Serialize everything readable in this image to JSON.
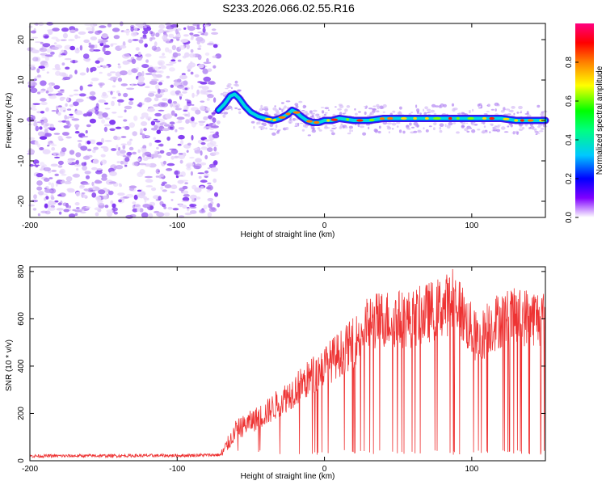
{
  "title": "S233.2026.066.02.55.R16",
  "chart_data": [
    {
      "type": "heatmap",
      "xlabel": "Height of straight line (km)",
      "ylabel": "Frequency (Hz)",
      "xlim": [
        -200,
        150
      ],
      "ylim": [
        -24,
        24
      ],
      "xticks": [
        -200,
        -100,
        0,
        100
      ],
      "yticks": [
        -20,
        -10,
        0,
        10,
        20
      ],
      "noise_region_x": [
        -200,
        -72
      ],
      "colorbar": {
        "label": "Normalized spectral amplitude",
        "range": [
          0,
          1
        ],
        "ticks": [
          0.0,
          0.2,
          0.4,
          0.6,
          0.8
        ],
        "tick_labels": [
          "0.0",
          "0.2",
          "0.4",
          "0.6",
          "0.8"
        ]
      },
      "ridge_trace": {
        "x": [
          -72,
          -68,
          -64,
          -61,
          -58,
          -54,
          -50,
          -45,
          -40,
          -35,
          -30,
          -25,
          -22,
          -19,
          -16,
          -12,
          -8,
          -4,
          0,
          5,
          10,
          20,
          30,
          40,
          50,
          60,
          70,
          80,
          90,
          100,
          110,
          120,
          130,
          140,
          150
        ],
        "y": [
          2.5,
          4,
          6,
          6.5,
          5.5,
          3.5,
          2,
          1,
          0.5,
          0,
          0.5,
          1.5,
          2.5,
          2,
          1,
          0,
          -0.5,
          -0.5,
          0,
          0,
          0.5,
          0,
          0,
          0.5,
          0.5,
          0.5,
          0.5,
          0.5,
          0.5,
          0.5,
          0.5,
          0.5,
          0,
          0,
          0
        ]
      }
    },
    {
      "type": "line",
      "xlabel": "Height of straight line (km)",
      "ylabel": "SNR (10 * v/v)",
      "xlim": [
        -200,
        150
      ],
      "ylim": [
        0,
        820
      ],
      "xticks": [
        -200,
        -100,
        0,
        100
      ],
      "yticks": [
        0,
        200,
        400,
        600,
        800
      ],
      "color": "#ee3333",
      "envelope": {
        "x": [
          -200,
          -100,
          -70,
          -60,
          -40,
          -20,
          0,
          20,
          30,
          40,
          60,
          80,
          90,
          95,
          100,
          105,
          110,
          120,
          140,
          150
        ],
        "y": [
          20,
          22,
          25,
          130,
          200,
          300,
          400,
          500,
          580,
          600,
          600,
          650,
          680,
          600,
          550,
          500,
          560,
          600,
          610,
          600
        ]
      },
      "dropouts_min": 25,
      "peak": {
        "x": 87,
        "y": 810
      }
    }
  ]
}
